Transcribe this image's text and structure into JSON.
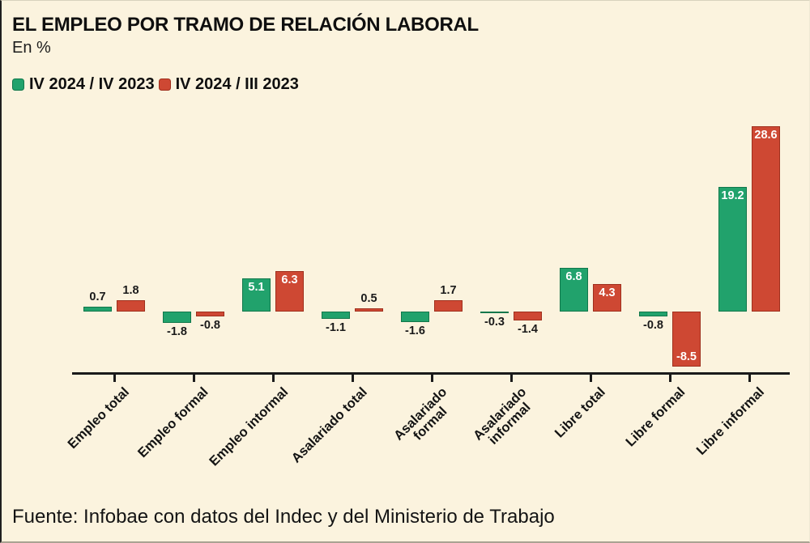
{
  "header": {
    "title": "EL EMPLEO POR TRAMO DE RELACIÓN LABORAL",
    "subtitle": "En %"
  },
  "footer": {
    "source": "Fuente: Infobae con datos del Indec y del Ministerio de Trabajo"
  },
  "colors": {
    "background": "#fbf3de",
    "axis": "#1a1a1a",
    "green_fill": "#21a26c",
    "green_border": "#11774b",
    "red_fill": "#ce4833",
    "red_border": "#9f2f1d",
    "label_outside": "#1a1a1a",
    "label_inside": "#ffffff"
  },
  "chart_data": {
    "type": "bar",
    "title": "EL EMPLEO POR TRAMO DE RELACIÓN LABORAL",
    "subtitle": "En %",
    "xlabel": "",
    "ylabel": "En %",
    "grid": false,
    "legend_position": "top-left",
    "baseline": 0,
    "ylim": [
      -10,
      30
    ],
    "categories": [
      "Empleo total",
      "Empleo formal",
      "Empleo intormal",
      "Asalariado total",
      "Asalariado\nformal",
      "Asalariado\ninformal",
      "Libre total",
      "Libre formal",
      "Libre informal"
    ],
    "series": [
      {
        "name": "IV 2024 / IV 2023",
        "color": "#21a26c",
        "border_color": "#11774b",
        "values": [
          0.7,
          -1.8,
          5.1,
          -1.1,
          -1.6,
          -0.3,
          6.8,
          -0.8,
          19.2
        ]
      },
      {
        "name": "IV 2024 / III 2023",
        "color": "#ce4833",
        "border_color": "#9f2f1d",
        "values": [
          1.8,
          -0.8,
          6.3,
          0.5,
          1.7,
          -1.4,
          4.3,
          -8.5,
          28.6
        ]
      }
    ],
    "value_labels": "one-decimal, inside bar (white) when |value| ≥ 4, outside (black) otherwise",
    "source": "Fuente: Infobae con datos del Indec y del Ministerio de Trabajo"
  }
}
